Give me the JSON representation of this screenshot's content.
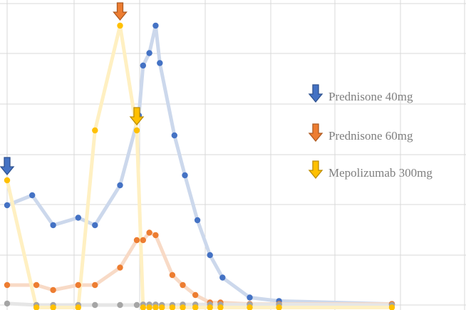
{
  "chart_data": {
    "type": "line",
    "title": "",
    "xlabel": "",
    "ylabel": "",
    "xlim": [
      0,
      100
    ],
    "ylim": [
      0,
      60
    ],
    "grid": true,
    "legend_position": "right",
    "series": [
      {
        "key": "blue",
        "color": "#4472c4",
        "line_color": "#ccd8ec",
        "points": [
          [
            0,
            20
          ],
          [
            6,
            22
          ],
          [
            11,
            16
          ],
          [
            17,
            17.5
          ],
          [
            21,
            16
          ],
          [
            27,
            24
          ],
          [
            31.5,
            38
          ],
          [
            32.5,
            48
          ],
          [
            34,
            50.5
          ],
          [
            35.5,
            56
          ],
          [
            36.5,
            48.5
          ],
          [
            40,
            34
          ],
          [
            42.5,
            26
          ],
          [
            45.5,
            17
          ],
          [
            48.5,
            10
          ],
          [
            51.5,
            5.5
          ],
          [
            58,
            1.5
          ],
          [
            65,
            0.8
          ],
          [
            92,
            0.2
          ]
        ]
      },
      {
        "key": "orange",
        "color": "#ed7d31",
        "line_color": "#f8dac6",
        "points": [
          [
            0,
            4
          ],
          [
            7,
            4
          ],
          [
            11,
            3
          ],
          [
            17,
            4
          ],
          [
            21,
            4
          ],
          [
            27,
            7.5
          ],
          [
            31,
            13
          ],
          [
            32.5,
            13
          ],
          [
            34,
            14.5
          ],
          [
            35.5,
            14
          ],
          [
            39.5,
            6
          ],
          [
            42,
            4
          ],
          [
            45,
            2
          ],
          [
            48.5,
            0.5
          ],
          [
            51,
            0.5
          ],
          [
            58,
            0.2
          ],
          [
            65,
            0.2
          ],
          [
            92,
            0.2
          ]
        ]
      },
      {
        "key": "gray",
        "color": "#a5a5a5",
        "line_color": "#e6e6e6",
        "points": [
          [
            0,
            0.3
          ],
          [
            7,
            0
          ],
          [
            11,
            0
          ],
          [
            17,
            0
          ],
          [
            21,
            0
          ],
          [
            27,
            0
          ],
          [
            31,
            0
          ],
          [
            32.5,
            0.1
          ],
          [
            34,
            0.1
          ],
          [
            35.5,
            0.1
          ],
          [
            37,
            0
          ],
          [
            39.5,
            0
          ],
          [
            42,
            0.1
          ],
          [
            45,
            0.1
          ],
          [
            48.5,
            0.1
          ],
          [
            51,
            0.1
          ],
          [
            58,
            0.1
          ],
          [
            65,
            0.1
          ],
          [
            92,
            0
          ]
        ]
      },
      {
        "key": "gold",
        "color": "#ffc000",
        "line_color": "#fff0c2",
        "points": [
          [
            0,
            25
          ],
          [
            7,
            -0.5
          ],
          [
            11,
            -0.5
          ],
          [
            17,
            -0.5
          ],
          [
            21,
            35
          ],
          [
            27,
            56
          ],
          [
            31,
            35
          ],
          [
            32.5,
            -0.5
          ],
          [
            34,
            -0.5
          ],
          [
            35.5,
            -0.5
          ],
          [
            37,
            -0.5
          ],
          [
            39.5,
            -0.5
          ],
          [
            42,
            -0.5
          ],
          [
            45,
            -0.5
          ],
          [
            48.5,
            -0.5
          ],
          [
            51,
            -0.5
          ],
          [
            58,
            -0.5
          ],
          [
            65,
            -0.5
          ],
          [
            92,
            -0.5
          ]
        ]
      }
    ],
    "event_markers": [
      {
        "x": 0,
        "y": 25,
        "kind": "blue"
      },
      {
        "x": 27,
        "y": 56,
        "kind": "orange"
      },
      {
        "x": 31,
        "y": 35,
        "kind": "gold"
      }
    ],
    "legend": [
      {
        "label": "Prednisone 40mg",
        "kind": "blue"
      },
      {
        "label": "Prednisone 60mg",
        "kind": "orange"
      },
      {
        "label": "Mepolizumab 300mg",
        "kind": "gold"
      }
    ],
    "arrow_colors": {
      "blue": {
        "fill": "#4472c4",
        "stroke": "#2f528f"
      },
      "orange": {
        "fill": "#ed7d31",
        "stroke": "#ae5a21"
      },
      "gold": {
        "fill": "#ffc000",
        "stroke": "#bc8c00"
      }
    }
  }
}
